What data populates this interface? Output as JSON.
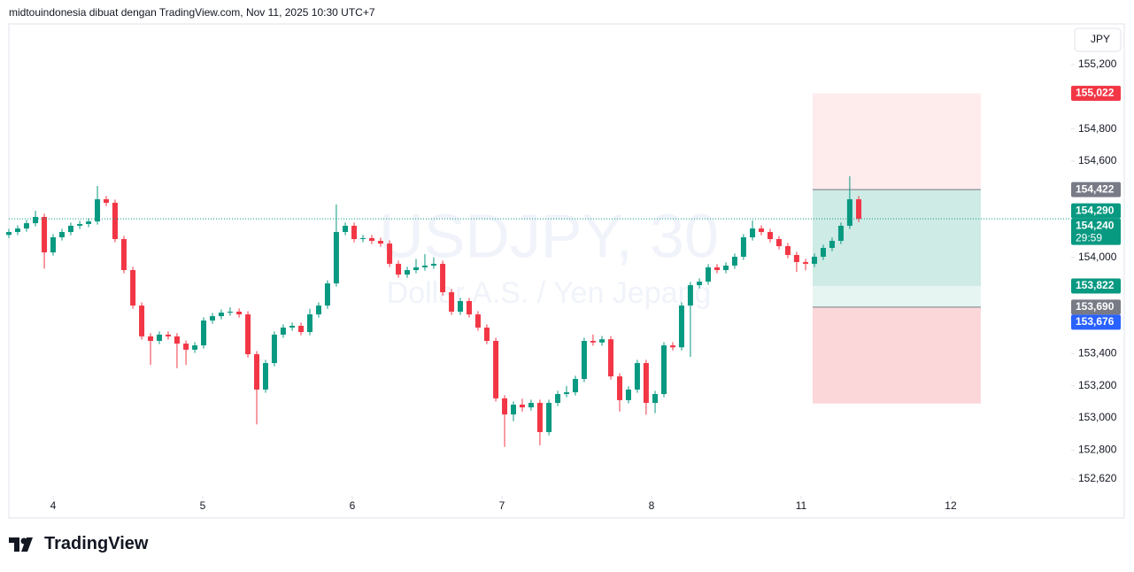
{
  "header": "midtouindonesia dibuat dengan TradingView.com, Nov 11, 2025 10:30 UTC+7",
  "currency": "JPY",
  "footer_logo": "TradingView",
  "chart_data": {
    "type": "candlestick",
    "watermark": "USDJPY, 30",
    "watermark_sub": "Dollar A.S. / Yen Jepang",
    "up_color": "#089981",
    "down_color": "#f23645",
    "xlim": [
      -0.296,
      6.805
    ],
    "ylim": [
      152.515,
      155.454
    ],
    "xticks": [
      {
        "value": 0,
        "label": "4"
      },
      {
        "value": 1,
        "label": "5"
      },
      {
        "value": 2,
        "label": "6"
      },
      {
        "value": 3,
        "label": "7"
      },
      {
        "value": 4,
        "label": "8"
      },
      {
        "value": 5,
        "label": "11"
      },
      {
        "value": 6,
        "label": "12"
      }
    ],
    "yticks": [
      {
        "value": 155.2,
        "label": "155,200"
      },
      {
        "value": 154.8,
        "label": "154,800"
      },
      {
        "value": 154.6,
        "label": "154,600"
      },
      {
        "value": 154.0,
        "label": "154,000"
      },
      {
        "value": 153.4,
        "label": "153,400"
      },
      {
        "value": 153.2,
        "label": "153,200"
      },
      {
        "value": 153.0,
        "label": "153,000"
      },
      {
        "value": 152.8,
        "label": "152,800"
      },
      {
        "value": 152.62,
        "label": "152,620"
      }
    ],
    "x": [
      -0.296,
      -0.237,
      -0.178,
      -0.118,
      -0.059,
      0,
      0.059,
      0.118,
      0.178,
      0.237,
      0.296,
      0.355,
      0.414,
      0.473,
      0.533,
      0.592,
      0.651,
      0.71,
      0.769,
      0.828,
      0.888,
      0.947,
      1.006,
      1.065,
      1.124,
      1.183,
      1.243,
      1.302,
      1.361,
      1.42,
      1.479,
      1.538,
      1.598,
      1.657,
      1.716,
      1.775,
      1.834,
      1.893,
      1.953,
      2.012,
      2.071,
      2.13,
      2.189,
      2.249,
      2.308,
      2.367,
      2.426,
      2.485,
      2.544,
      2.604,
      2.663,
      2.722,
      2.781,
      2.84,
      2.899,
      2.959,
      3.018,
      3.077,
      3.136,
      3.195,
      3.254,
      3.314,
      3.373,
      3.432,
      3.491,
      3.55,
      3.609,
      3.669,
      3.728,
      3.787,
      3.846,
      3.905,
      3.964,
      4.024,
      4.083,
      4.142,
      4.201,
      4.26,
      4.32,
      4.379,
      4.438,
      4.497,
      4.556,
      4.615,
      4.675,
      4.734,
      4.793,
      4.852,
      4.911,
      4.97,
      5.03,
      5.089,
      5.148,
      5.207,
      5.266,
      5.325,
      5.385
    ],
    "ohlc": [
      [
        154.14,
        154.178,
        154.12,
        154.158
      ],
      [
        154.158,
        154.2,
        154.138,
        154.18
      ],
      [
        154.18,
        154.233,
        154.16,
        154.213
      ],
      [
        154.213,
        154.29,
        154.193,
        154.252
      ],
      [
        154.252,
        154.272,
        153.93,
        154.031
      ],
      [
        154.031,
        154.145,
        154.011,
        154.125
      ],
      [
        154.125,
        154.178,
        154.105,
        154.158
      ],
      [
        154.158,
        154.217,
        154.138,
        154.197
      ],
      [
        154.197,
        154.228,
        154.177,
        154.208
      ],
      [
        154.208,
        154.244,
        154.188,
        154.224
      ],
      [
        154.224,
        154.445,
        154.204,
        154.362
      ],
      [
        154.362,
        154.382,
        154.32,
        154.34
      ],
      [
        154.34,
        154.36,
        154.094,
        154.114
      ],
      [
        154.114,
        154.134,
        153.901,
        153.921
      ],
      [
        153.921,
        153.941,
        153.68,
        153.7
      ],
      [
        153.7,
        153.72,
        153.488,
        153.508
      ],
      [
        153.508,
        153.528,
        153.33,
        153.48
      ],
      [
        153.48,
        153.539,
        153.46,
        153.519
      ],
      [
        153.519,
        153.539,
        153.488,
        153.508
      ],
      [
        153.508,
        153.528,
        153.31,
        153.463
      ],
      [
        153.463,
        153.483,
        153.33,
        153.425
      ],
      [
        153.425,
        153.472,
        153.405,
        153.452
      ],
      [
        153.452,
        153.627,
        153.432,
        153.607
      ],
      [
        153.607,
        153.654,
        153.587,
        153.634
      ],
      [
        153.634,
        153.676,
        153.614,
        153.656
      ],
      [
        153.656,
        153.69,
        153.636,
        153.662
      ],
      [
        153.662,
        153.682,
        153.625,
        153.645
      ],
      [
        153.645,
        153.665,
        153.377,
        153.397
      ],
      [
        153.397,
        153.417,
        152.96,
        153.177
      ],
      [
        153.177,
        153.362,
        153.157,
        153.342
      ],
      [
        153.342,
        153.539,
        153.322,
        153.519
      ],
      [
        153.519,
        153.583,
        153.499,
        153.563
      ],
      [
        153.563,
        153.594,
        153.543,
        153.574
      ],
      [
        153.574,
        153.594,
        153.515,
        153.535
      ],
      [
        153.535,
        153.68,
        153.515,
        153.645
      ],
      [
        153.645,
        153.72,
        153.625,
        153.7
      ],
      [
        153.7,
        153.858,
        153.68,
        153.838
      ],
      [
        153.838,
        154.33,
        153.818,
        154.158
      ],
      [
        154.158,
        154.217,
        154.138,
        154.197
      ],
      [
        154.197,
        154.217,
        154.094,
        154.114
      ],
      [
        154.114,
        154.14,
        154.094,
        154.12
      ],
      [
        154.12,
        154.14,
        154.083,
        154.103
      ],
      [
        154.103,
        154.123,
        154.066,
        154.086
      ],
      [
        154.086,
        154.106,
        153.94,
        153.96
      ],
      [
        153.96,
        153.98,
        153.873,
        153.893
      ],
      [
        153.893,
        153.941,
        153.873,
        153.921
      ],
      [
        153.921,
        153.99,
        153.901,
        153.938
      ],
      [
        153.938,
        154.02,
        153.918,
        153.949
      ],
      [
        153.949,
        154.0,
        153.929,
        153.96
      ],
      [
        153.96,
        153.98,
        153.763,
        153.783
      ],
      [
        153.783,
        153.803,
        153.642,
        153.662
      ],
      [
        153.662,
        153.748,
        153.642,
        153.728
      ],
      [
        153.728,
        153.748,
        153.625,
        153.645
      ],
      [
        153.645,
        153.665,
        153.543,
        153.563
      ],
      [
        153.563,
        153.583,
        153.46,
        153.48
      ],
      [
        153.48,
        153.5,
        153.102,
        153.122
      ],
      [
        153.122,
        153.142,
        152.82,
        153.022
      ],
      [
        153.022,
        153.103,
        152.98,
        153.083
      ],
      [
        153.083,
        153.12,
        153.04,
        153.066
      ],
      [
        153.066,
        153.114,
        153.046,
        153.094
      ],
      [
        153.094,
        153.114,
        152.83,
        152.912
      ],
      [
        152.912,
        153.114,
        152.892,
        153.094
      ],
      [
        153.094,
        153.169,
        153.074,
        153.149
      ],
      [
        153.149,
        153.2,
        153.129,
        153.16
      ],
      [
        153.16,
        153.263,
        153.14,
        153.243
      ],
      [
        153.243,
        153.5,
        153.223,
        153.48
      ],
      [
        153.48,
        153.52,
        153.45,
        153.47
      ],
      [
        153.47,
        153.51,
        153.45,
        153.49
      ],
      [
        153.49,
        153.51,
        153.239,
        153.259
      ],
      [
        153.259,
        153.279,
        153.04,
        153.111
      ],
      [
        153.111,
        153.197,
        153.091,
        153.177
      ],
      [
        153.177,
        153.362,
        153.157,
        153.342
      ],
      [
        153.342,
        153.362,
        153.02,
        153.094
      ],
      [
        153.094,
        153.169,
        153.03,
        153.149
      ],
      [
        153.149,
        153.472,
        153.129,
        153.452
      ],
      [
        153.452,
        153.472,
        153.42,
        153.44
      ],
      [
        153.44,
        153.72,
        153.42,
        153.7
      ],
      [
        153.7,
        153.847,
        153.38,
        153.827
      ],
      [
        153.827,
        153.869,
        153.807,
        153.849
      ],
      [
        153.849,
        153.958,
        153.829,
        153.938
      ],
      [
        153.938,
        153.958,
        153.901,
        153.921
      ],
      [
        153.921,
        153.969,
        153.901,
        153.949
      ],
      [
        153.949,
        154.024,
        153.929,
        154.004
      ],
      [
        154.004,
        154.145,
        153.984,
        154.125
      ],
      [
        154.125,
        154.23,
        154.105,
        154.18
      ],
      [
        154.18,
        154.2,
        154.138,
        154.158
      ],
      [
        154.158,
        154.178,
        154.094,
        154.114
      ],
      [
        154.114,
        154.134,
        154.05,
        154.07
      ],
      [
        154.07,
        154.09,
        153.995,
        154.015
      ],
      [
        154.015,
        154.035,
        153.91,
        153.971
      ],
      [
        153.971,
        153.991,
        153.92,
        153.96
      ],
      [
        153.96,
        154.024,
        153.94,
        154.004
      ],
      [
        154.004,
        154.079,
        153.984,
        154.059
      ],
      [
        154.059,
        154.123,
        154.039,
        154.103
      ],
      [
        154.103,
        154.217,
        154.083,
        154.197
      ],
      [
        154.197,
        154.505,
        154.177,
        154.362
      ],
      [
        154.362,
        154.382,
        154.22,
        154.24
      ]
    ],
    "zones": [
      {
        "x": [
          5.077,
          6.201
        ],
        "from": 155.022,
        "to": 154.422,
        "color": "rgba(242,54,69,0.1)"
      },
      {
        "x": [
          5.077,
          6.201
        ],
        "from": 154.422,
        "to": 153.822,
        "color": "rgba(8,153,129,0.2)"
      },
      {
        "x": [
          5.077,
          6.201
        ],
        "from": 153.822,
        "to": 153.69,
        "color": "rgba(8,153,129,0.1)"
      },
      {
        "x": [
          5.077,
          6.201
        ],
        "from": 153.69,
        "to": 153.09,
        "color": "rgba(242,54,69,0.2)"
      }
    ],
    "zone_lines": [
      154.422,
      153.69
    ],
    "price_badges": [
      {
        "value": 155.022,
        "label": "155,022",
        "color": "#f23645"
      },
      {
        "value": 154.422,
        "label": "154,422",
        "color": "#787b86"
      },
      {
        "value": 154.29,
        "label": "154,290",
        "color": "#089981"
      },
      {
        "value": 154.24,
        "label": "154,240",
        "color": "#089981",
        "countdown": "29:59",
        "line": true
      },
      {
        "value": 153.822,
        "label": "153,822",
        "color": "#089981"
      },
      {
        "value": 153.69,
        "label": "153,690",
        "color": "#787b86"
      },
      {
        "value": 153.676,
        "label": "153,676",
        "color": "#2962ff"
      }
    ]
  }
}
